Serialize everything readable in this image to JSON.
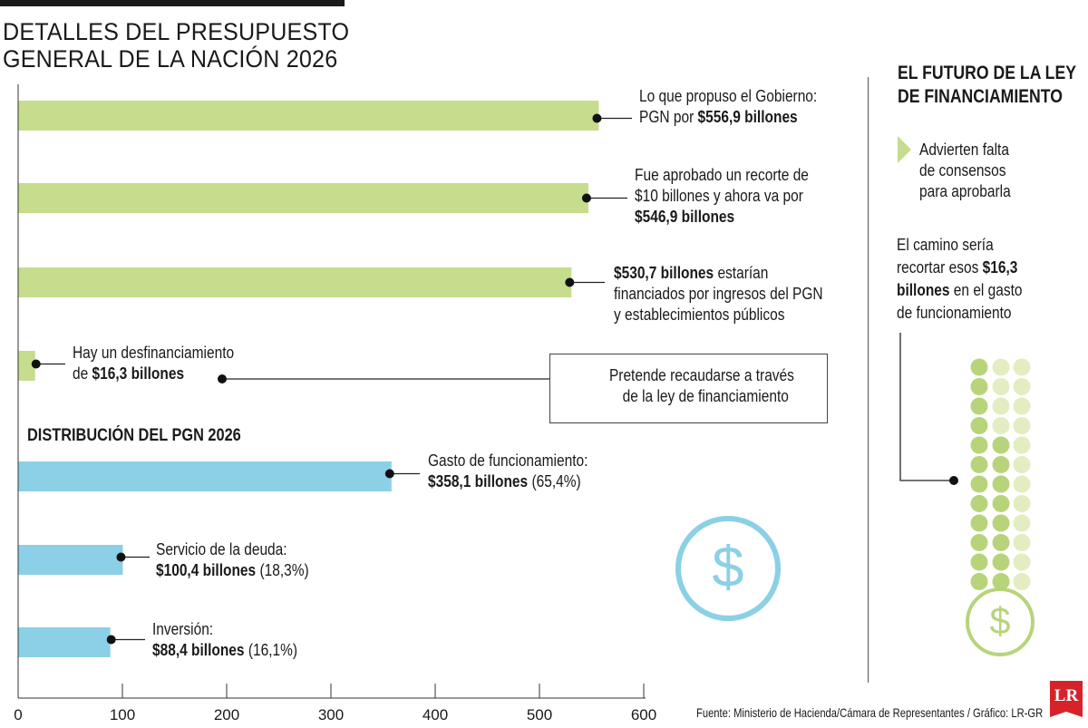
{
  "header": {
    "title_line1": "DETALLES DEL PRESUPUESTO",
    "title_line2": "GENERAL DE LA NACIÓN 2026"
  },
  "annotations": {
    "gobierno": {
      "text": "Lo que propuso el Gobierno:",
      "text2": "PGN por ",
      "bold": "$556,9 billones"
    },
    "aprobado": {
      "text": "Fue aprobado un recorte de",
      "text2": "$10 billones y ahora va por",
      "bold": "$546,9 billones"
    },
    "financiados": {
      "bold": "$530,7 billones",
      "text": " estarían",
      "text2": "financiados por ingresos del PGN",
      "text3": "y establecimientos públicos"
    },
    "desfinanciamiento": {
      "text": "Hay un desfinanciamiento",
      "text2": "de ",
      "bold": "$16,3 billones"
    },
    "box": {
      "line1": "Pretende recaudarse a través",
      "line2": "de la ley de financiamiento"
    },
    "funcionamiento": {
      "text": "Gasto de funcionamiento:",
      "bold": "$358,1 billones",
      "pct": " (65,4%)"
    },
    "deuda": {
      "text": "Servicio de la deuda:",
      "bold": "$100,4 billones",
      "pct": " (18,3%)"
    },
    "inversion": {
      "text": "Inversión:",
      "bold": "$88,4 billones",
      "pct": " (16,1%)"
    }
  },
  "section_distribucion": "DISTRIBUCIÓN DEL PGN 2026",
  "right_panel": {
    "title_line1": "EL FUTURO DE LA LEY",
    "title_line2": "DE FINANCIAMIENTO",
    "point1_line1": "Advierten falta",
    "point1_line2": "de consensos",
    "point1_line3": "para aprobarla",
    "point2_line1": "El camino sería",
    "point2_line2a": "recortar esos ",
    "point2_line2b": "$16,3",
    "point2_line3a": "billones",
    "point2_line3b": " en el gasto",
    "point2_line4": "de funcionamiento"
  },
  "source": "Fuente: Ministerio de Hacienda/Cámara de Representantes / Gráfico: LR-GR",
  "logo": "LR",
  "colors": {
    "green": "#c5dd8c",
    "blue": "#8bd0e6",
    "green_light": "#e3edc1",
    "green_dot": "#b8d47a",
    "ink": "#1a1a1a"
  },
  "icons": [
    "dollar-circle-icon-blue",
    "dollar-circle-icon-green"
  ],
  "chart_data": {
    "type": "bar",
    "orientation": "horizontal",
    "xlim": [
      0,
      600
    ],
    "ticks": [
      "0",
      "100",
      "200",
      "300",
      "400",
      "500",
      "600"
    ],
    "categories": [
      "Propuesta del Gobierno",
      "Aprobado",
      "Financiado",
      "Desfinanciamiento",
      "Gasto de funcionamiento",
      "Servicio de la deuda",
      "Inversión"
    ],
    "values": [
      556.9,
      546.9,
      530.7,
      16.3,
      358.1,
      100.4,
      88.4
    ],
    "groups": [
      "green",
      "green",
      "green",
      "green",
      "blue",
      "blue",
      "blue"
    ],
    "dots": {
      "filled": 20,
      "light": 20
    }
  }
}
